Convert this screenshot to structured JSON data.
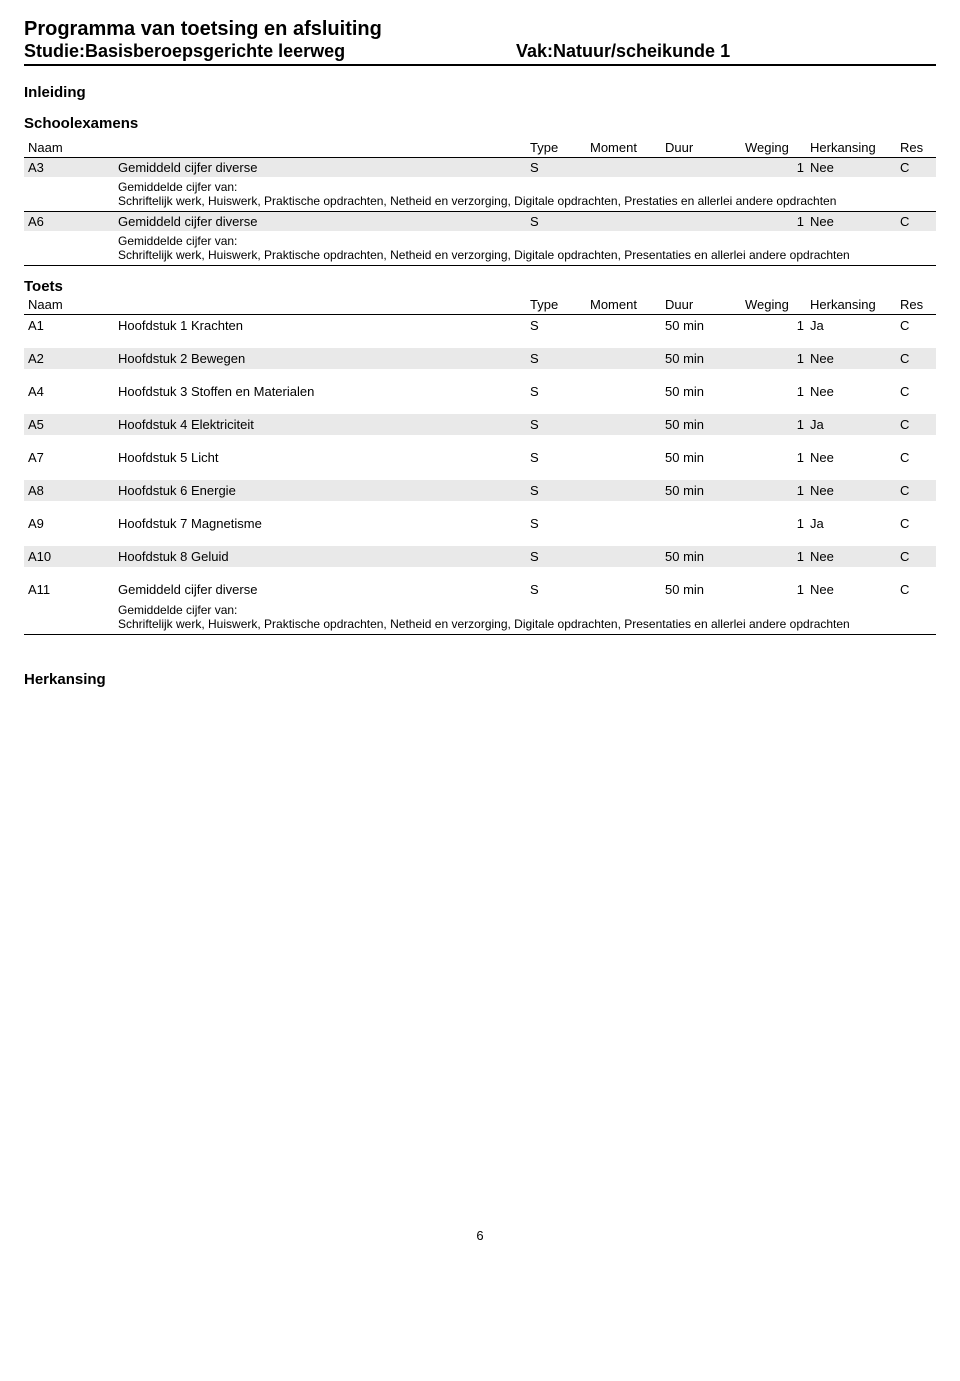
{
  "header": {
    "title": "Programma van toetsing en afsluiting",
    "studie_label": "Studie:",
    "studie_value": "Basisberoepsgerichte leerweg",
    "vak_label": "Vak:",
    "vak_value": "Natuur/scheikunde 1"
  },
  "sections": {
    "inleiding": "Inleiding",
    "schoolexamens": "Schoolexamens",
    "toets": "Toets",
    "herkansing": "Herkansing"
  },
  "columns": {
    "naam": "Naam",
    "type": "Type",
    "moment": "Moment",
    "duur": "Duur",
    "weging": "Weging",
    "herkansing": "Herkansing",
    "res": "Res"
  },
  "schoolexamens": [
    {
      "code": "A3",
      "naam": "Gemiddeld cijfer diverse",
      "type": "S",
      "moment": "",
      "duur": "",
      "weging": "1",
      "herkansing": "Nee",
      "res": "C",
      "sub_label": "Gemiddelde cijfer van:",
      "sub_desc": "Schriftelijk werk, Huiswerk, Praktische opdrachten, Netheid en verzorging, Digitale opdrachten, Prestaties en allerlei andere opdrachten"
    },
    {
      "code": "A6",
      "naam": "Gemiddeld cijfer diverse",
      "type": "S",
      "moment": "",
      "duur": "",
      "weging": "1",
      "herkansing": "Nee",
      "res": "C",
      "sub_label": "Gemiddelde cijfer van:",
      "sub_desc": "Schriftelijk werk, Huiswerk, Praktische opdrachten, Netheid en verzorging, Digitale opdrachten, Presentaties en allerlei andere opdrachten"
    }
  ],
  "toets": [
    {
      "code": "A1",
      "naam": "Hoofdstuk 1 Krachten",
      "type": "S",
      "moment": "",
      "duur": "50 min",
      "weging": "1",
      "herkansing": "Ja",
      "res": "C",
      "shade": false
    },
    {
      "code": "A2",
      "naam": "Hoofdstuk 2 Bewegen",
      "type": "S",
      "moment": "",
      "duur": "50 min",
      "weging": "1",
      "herkansing": "Nee",
      "res": "C",
      "shade": true
    },
    {
      "code": "A4",
      "naam": "Hoofdstuk 3 Stoffen en Materialen",
      "type": "S",
      "moment": "",
      "duur": "50 min",
      "weging": "1",
      "herkansing": "Nee",
      "res": "C",
      "shade": false
    },
    {
      "code": "A5",
      "naam": "Hoofdstuk 4 Elektriciteit",
      "type": "S",
      "moment": "",
      "duur": "50 min",
      "weging": "1",
      "herkansing": "Ja",
      "res": "C",
      "shade": true
    },
    {
      "code": "A7",
      "naam": "Hoofdstuk 5 Licht",
      "type": "S",
      "moment": "",
      "duur": "50 min",
      "weging": "1",
      "herkansing": "Nee",
      "res": "C",
      "shade": false
    },
    {
      "code": "A8",
      "naam": "Hoofdstuk 6 Energie",
      "type": "S",
      "moment": "",
      "duur": "50 min",
      "weging": "1",
      "herkansing": "Nee",
      "res": "C",
      "shade": true
    },
    {
      "code": "A9",
      "naam": "Hoofdstuk 7 Magnetisme",
      "type": "S",
      "moment": "",
      "duur": "",
      "weging": "1",
      "herkansing": "Ja",
      "res": "C",
      "shade": false
    },
    {
      "code": "A10",
      "naam": "Hoofdstuk 8 Geluid",
      "type": "S",
      "moment": "",
      "duur": "50 min",
      "weging": "1",
      "herkansing": "Nee",
      "res": "C",
      "shade": true
    },
    {
      "code": "A11",
      "naam": "Gemiddeld cijfer diverse",
      "type": "S",
      "moment": "",
      "duur": "50 min",
      "weging": "1",
      "herkansing": "Nee",
      "res": "C",
      "shade": false,
      "sub_label": "Gemiddelde cijfer van:",
      "sub_desc": "Schriftelijk werk, Huiswerk, Praktische opdrachten, Netheid en verzorging, Digitale opdrachten, Presentaties en allerlei andere opdrachten"
    }
  ],
  "page_number": "6",
  "colors": {
    "shade": "#e9e9e9",
    "text": "#000000",
    "rule": "#000000",
    "background": "#ffffff"
  }
}
